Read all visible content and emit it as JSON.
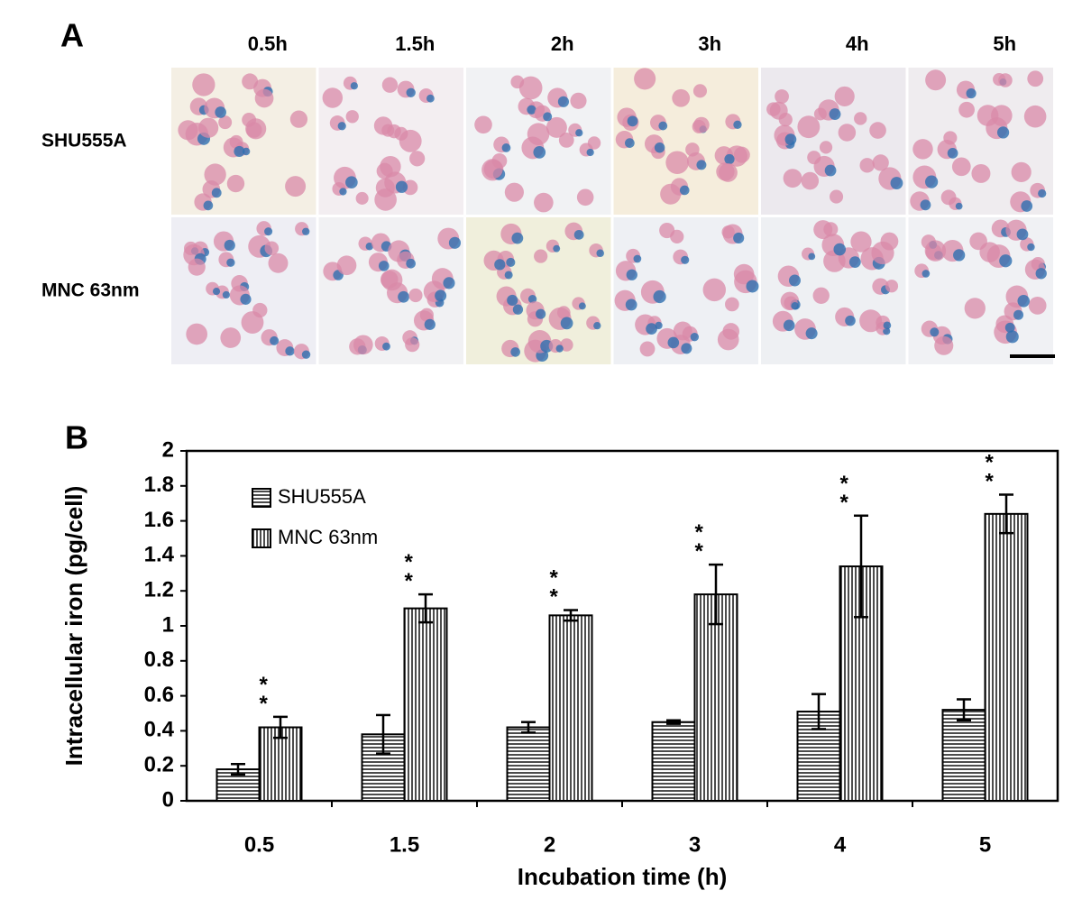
{
  "panel_a": {
    "label": "A",
    "columns": [
      "0.5h",
      "1.5h",
      "2h",
      "3h",
      "4h",
      "5h"
    ],
    "rows": [
      "SHU555A",
      "MNC 63nm"
    ]
  },
  "chart_data": {
    "type": "bar",
    "panel_label": "B",
    "x_label": "Incubation time (h)",
    "y_label": "Intracellular iron (pg/cell)",
    "categories": [
      "0.5",
      "1.5",
      "2",
      "3",
      "4",
      "5"
    ],
    "series": [
      {
        "name": "SHU555A",
        "color": "#000000",
        "pattern": "horizontal",
        "values": [
          0.18,
          0.38,
          0.42,
          0.45,
          0.51,
          0.52
        ],
        "errors": [
          0.03,
          0.11,
          0.03,
          0.01,
          0.1,
          0.06
        ]
      },
      {
        "name": "MNC 63nm",
        "color": "#000000",
        "pattern": "vertical",
        "values": [
          0.42,
          1.1,
          1.06,
          1.18,
          1.34,
          1.64
        ],
        "errors": [
          0.06,
          0.08,
          0.03,
          0.17,
          0.29,
          0.11
        ],
        "annotations": [
          "**",
          "**",
          "**",
          "**",
          "**",
          "**"
        ]
      }
    ],
    "ylim": [
      0,
      2
    ],
    "yticks": [
      0,
      0.2,
      0.4,
      0.6,
      0.8,
      1,
      1.2,
      1.4,
      1.6,
      1.8,
      2
    ],
    "grid": false,
    "legend": "upper left"
  }
}
